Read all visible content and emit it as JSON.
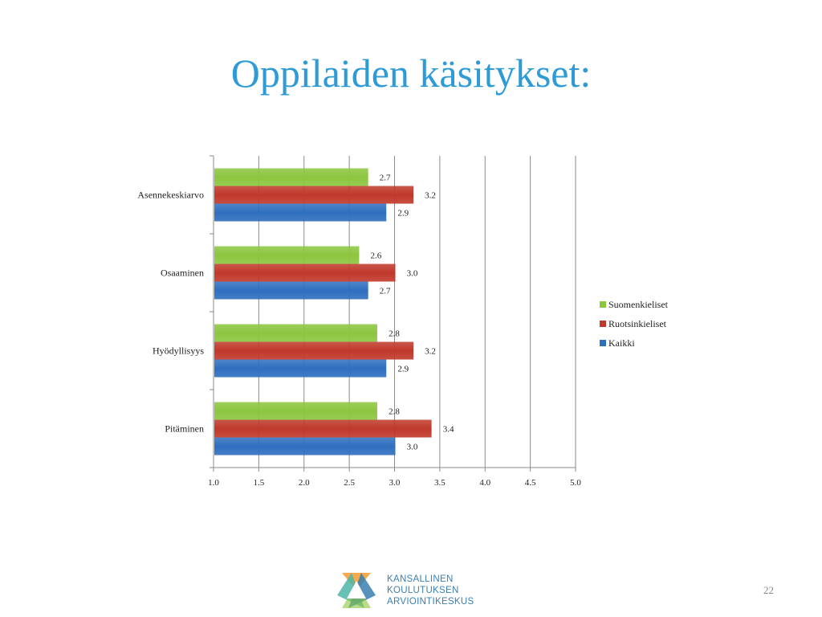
{
  "slide": {
    "title": "Oppilaiden käsitykset:",
    "page_number": "22"
  },
  "logo": {
    "lines": [
      "KANSALLINEN",
      "KOULUTUKSEN",
      "ARVIOINTIKESKUS"
    ]
  },
  "legend": {
    "items": [
      {
        "label": "Suomenkieliset",
        "color": "#8cc63f"
      },
      {
        "label": "Ruotsinkieliset",
        "color": "#c0392b"
      },
      {
        "label": "Kaikki",
        "color": "#2f6fbf"
      }
    ]
  },
  "chart_data": {
    "type": "bar",
    "orientation": "horizontal",
    "categories": [
      "Asennekeskiarvo",
      "Osaaminen",
      "Hyödyllisyys",
      "Pitäminen"
    ],
    "series": [
      {
        "name": "Suomenkieliset",
        "values": [
          2.7,
          2.6,
          2.8,
          2.8
        ],
        "color": "#8cc63f"
      },
      {
        "name": "Ruotsinkieliset",
        "values": [
          3.2,
          3.0,
          3.2,
          3.4
        ],
        "color": "#c0392b"
      },
      {
        "name": "Kaikki",
        "values": [
          2.9,
          2.7,
          2.9,
          3.0
        ],
        "color": "#2f6fbf"
      }
    ],
    "data_labels": [
      [
        "2.7",
        "2.6",
        "2.8",
        "2.8"
      ],
      [
        "3.2",
        "3.0",
        "3.2",
        "3.4"
      ],
      [
        "2.9",
        "2.7",
        "2.9",
        "3.0"
      ]
    ],
    "xlim": [
      1.0,
      5.0
    ],
    "xticks": [
      "1.0",
      "1.5",
      "2.0",
      "2.5",
      "3.0",
      "3.5",
      "4.0",
      "4.5",
      "5.0"
    ],
    "grid": true,
    "legend_position": "right"
  }
}
